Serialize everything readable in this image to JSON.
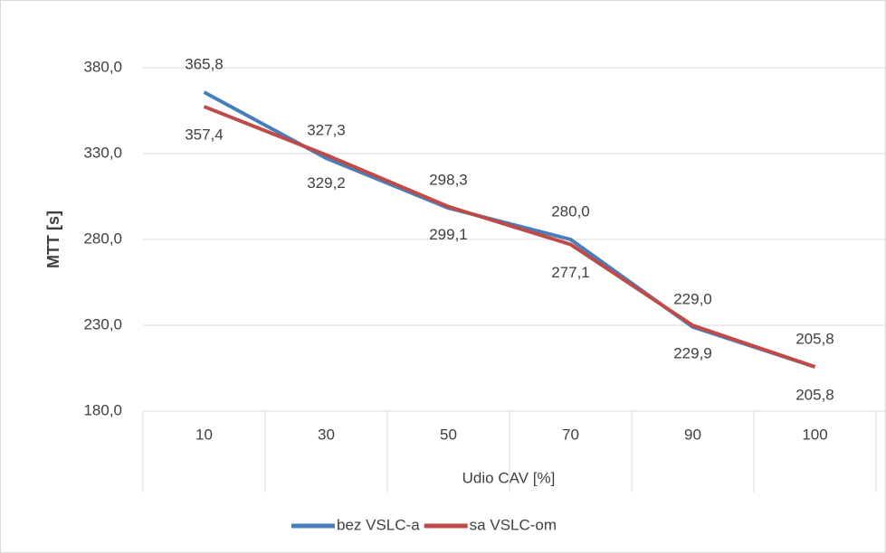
{
  "chart_data": {
    "type": "line",
    "y_label": "MTT [s]",
    "x_label": "Udio CAV [%]",
    "categories": [
      "10",
      "30",
      "50",
      "70",
      "90",
      "100"
    ],
    "series": [
      {
        "name": "bez VSLC-a",
        "color": "#4a7ebb",
        "values": [
          365.8,
          327.3,
          298.3,
          280.0,
          229.0,
          205.8
        ],
        "value_labels": [
          "365,8",
          "327,3",
          "298,3",
          "280,0",
          "229,0",
          "205,8"
        ]
      },
      {
        "name": "sa VSLC-om",
        "color": "#be4b48",
        "values": [
          357.4,
          329.2,
          299.1,
          277.1,
          229.9,
          205.8
        ],
        "value_labels": [
          "357,4",
          "329,2",
          "299,1",
          "277,1",
          "229,9",
          "205,8"
        ]
      }
    ],
    "ylim": [
      180,
      380
    ],
    "yticks": [
      {
        "value": 180,
        "label": "180,0"
      },
      {
        "value": 230,
        "label": "230,0"
      },
      {
        "value": 280,
        "label": "280,0"
      },
      {
        "value": 330,
        "label": "330,0"
      },
      {
        "value": 380,
        "label": "380,0"
      }
    ],
    "grid": true,
    "legend": "bottom"
  }
}
